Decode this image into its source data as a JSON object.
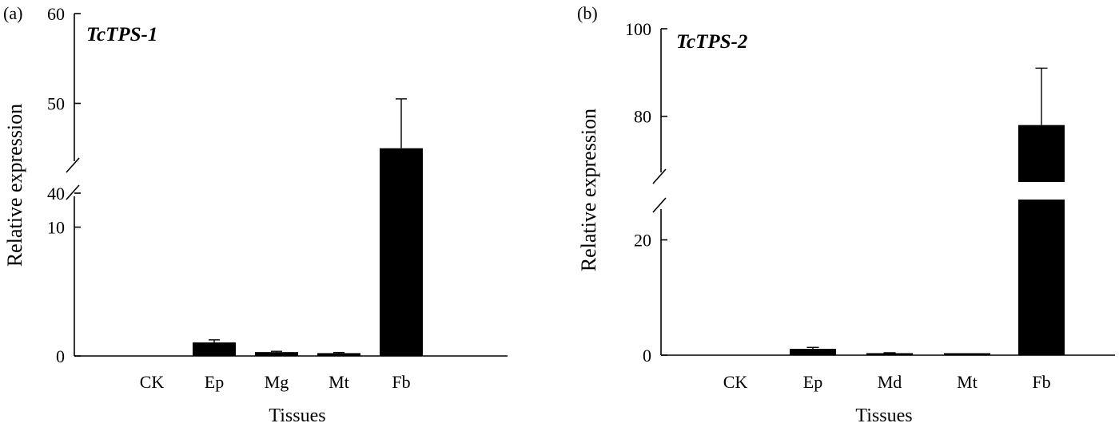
{
  "chart_data": [
    {
      "type": "bar",
      "panel_label": "(a)",
      "title": "TcTPS-1",
      "xlabel": "Tissues",
      "ylabel": "Relative expression",
      "categories": [
        "CK",
        "Ep",
        "Mg",
        "Mt",
        "Fb"
      ],
      "values": [
        0,
        1.05,
        0.3,
        0.22,
        45
      ],
      "errors": [
        0,
        0.2,
        0.06,
        0.05,
        5.5
      ],
      "axis_break": [
        14,
        40
      ],
      "lower_ylim": [
        0,
        14
      ],
      "upper_ylim": [
        40,
        60
      ],
      "lower_ticks": [
        "0",
        "10"
      ],
      "upper_ticks": [
        "40",
        "50",
        "60"
      ],
      "bar_color": "#000000",
      "grid": false
    },
    {
      "type": "bar",
      "panel_label": "(b)",
      "title": "TcTPS-2",
      "xlabel": "Tissues",
      "ylabel": "Relative expression",
      "categories": [
        "CK",
        "Ep",
        "Md",
        "Mt",
        "Fb"
      ],
      "values": [
        0,
        1.1,
        0.35,
        0.2,
        78
      ],
      "errors": [
        0,
        0.25,
        0.07,
        0.05,
        13
      ],
      "axis_break": [
        27,
        65
      ],
      "lower_ylim": [
        0,
        27
      ],
      "upper_ylim": [
        65,
        100
      ],
      "lower_ticks": [
        "0",
        "20"
      ],
      "upper_ticks": [
        "80",
        "100"
      ],
      "bar_color": "#000000",
      "grid": false
    }
  ]
}
